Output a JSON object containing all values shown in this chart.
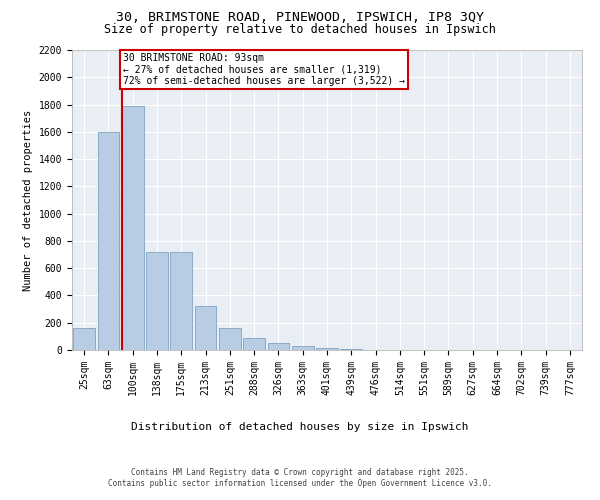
{
  "title_line1": "30, BRIMSTONE ROAD, PINEWOOD, IPSWICH, IP8 3QY",
  "title_line2": "Size of property relative to detached houses in Ipswich",
  "xlabel": "Distribution of detached houses by size in Ipswich",
  "ylabel": "Number of detached properties",
  "categories": [
    "25sqm",
    "63sqm",
    "100sqm",
    "138sqm",
    "175sqm",
    "213sqm",
    "251sqm",
    "288sqm",
    "326sqm",
    "363sqm",
    "401sqm",
    "439sqm",
    "476sqm",
    "514sqm",
    "551sqm",
    "589sqm",
    "627sqm",
    "664sqm",
    "702sqm",
    "739sqm",
    "777sqm"
  ],
  "values": [
    160,
    1600,
    1790,
    720,
    720,
    320,
    160,
    85,
    55,
    30,
    15,
    5,
    0,
    0,
    0,
    0,
    0,
    0,
    0,
    0,
    0
  ],
  "bar_color": "#b8cce4",
  "bar_edge_color": "#7096b8",
  "background_color": "#e8eef4",
  "grid_color": "#ffffff",
  "annotation_box_color": "#cc0000",
  "property_line_color": "#cc0000",
  "property_bin_index": 2,
  "annotation_text": "30 BRIMSTONE ROAD: 93sqm\n← 27% of detached houses are smaller (1,319)\n72% of semi-detached houses are larger (3,522) →",
  "footer_line1": "Contains HM Land Registry data © Crown copyright and database right 2025.",
  "footer_line2": "Contains public sector information licensed under the Open Government Licence v3.0.",
  "ylim": [
    0,
    2200
  ],
  "yticks": [
    0,
    200,
    400,
    600,
    800,
    1000,
    1200,
    1400,
    1600,
    1800,
    2000,
    2200
  ],
  "title1_fontsize": 9.5,
  "title2_fontsize": 8.5,
  "ylabel_fontsize": 7.5,
  "xlabel_fontsize": 8,
  "tick_fontsize": 7,
  "footer_fontsize": 5.5,
  "annot_fontsize": 7
}
